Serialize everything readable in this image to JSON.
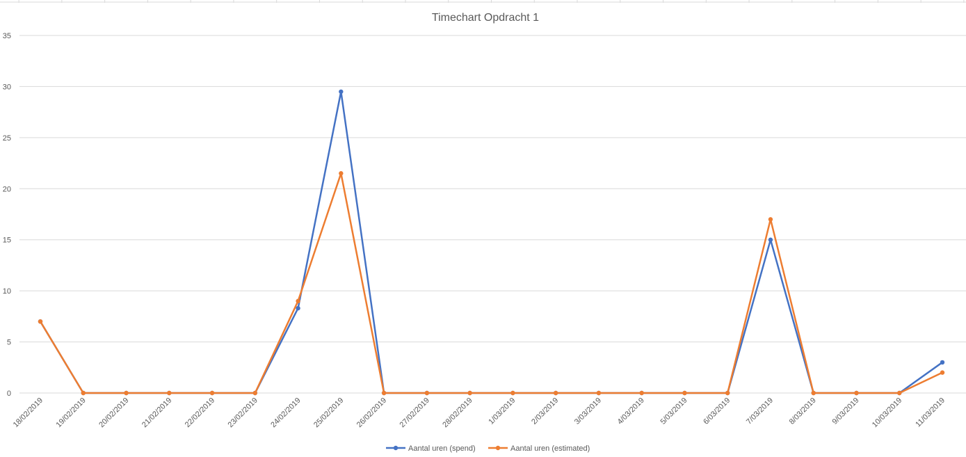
{
  "chart_data": {
    "type": "line",
    "title": "Timechart Opdracht 1",
    "xlabel": "",
    "ylabel": "",
    "ylim": [
      0,
      35
    ],
    "yticks": [
      0,
      5,
      10,
      15,
      20,
      25,
      30,
      35
    ],
    "grid": true,
    "legend_position": "bottom",
    "categories": [
      "18/02/2019",
      "19/02/2019",
      "20/02/2019",
      "21/02/2019",
      "22/02/2019",
      "23/02/2019",
      "24/02/2019",
      "25/02/2019",
      "26/02/2019",
      "27/02/2019",
      "28/02/2019",
      "1/03/2019",
      "2/03/2019",
      "3/03/2019",
      "4/03/2019",
      "5/03/2019",
      "6/03/2019",
      "7/03/2019",
      "8/03/2019",
      "9/03/2019",
      "10/03/2019",
      "11/03/2019"
    ],
    "series": [
      {
        "name": "Aantal uren (spend)",
        "color": "#4472c4",
        "values": [
          7,
          0,
          0,
          0,
          0,
          0,
          8.3,
          29.5,
          0,
          0,
          0,
          0,
          0,
          0,
          0,
          0,
          0,
          15,
          0,
          0,
          0,
          3
        ]
      },
      {
        "name": "Aantal uren (estimated)",
        "color": "#ed7d31",
        "values": [
          7,
          0,
          0,
          0,
          0,
          0,
          9,
          21.5,
          0,
          0,
          0,
          0,
          0,
          0,
          0,
          0,
          0,
          17,
          0,
          0,
          0,
          2
        ]
      }
    ]
  }
}
